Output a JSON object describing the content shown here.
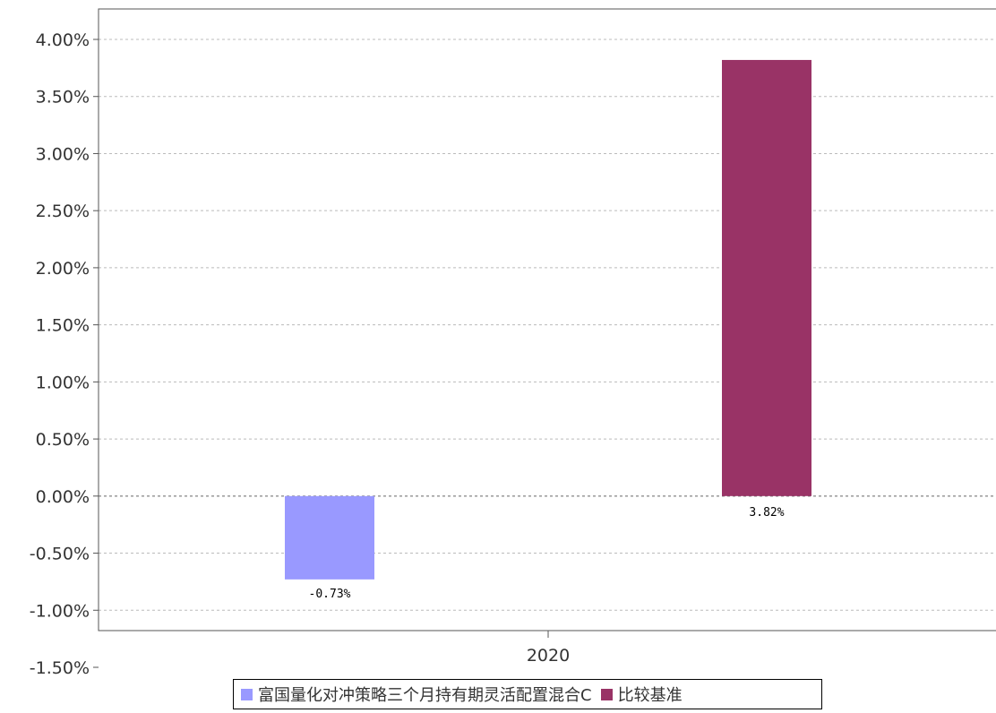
{
  "chart_data": {
    "type": "bar",
    "categories": [
      "2020"
    ],
    "series": [
      {
        "name": "富国量化对冲策略三个月持有期灵活配置混合C",
        "values": [
          -0.73
        ],
        "label": "-0.73%",
        "color": "#9999ff"
      },
      {
        "name": "比较基准",
        "values": [
          3.82
        ],
        "label": "3.82%",
        "color": "#993366"
      }
    ],
    "yticks": [
      "4.00%",
      "3.50%",
      "3.00%",
      "2.50%",
      "2.00%",
      "1.50%",
      "1.00%",
      "0.50%",
      "0.00%",
      "-0.50%",
      "-1.00%",
      "-1.50%"
    ],
    "ylim": [
      -1.5,
      4.0
    ],
    "grid": true,
    "legend_position": "bottom"
  }
}
